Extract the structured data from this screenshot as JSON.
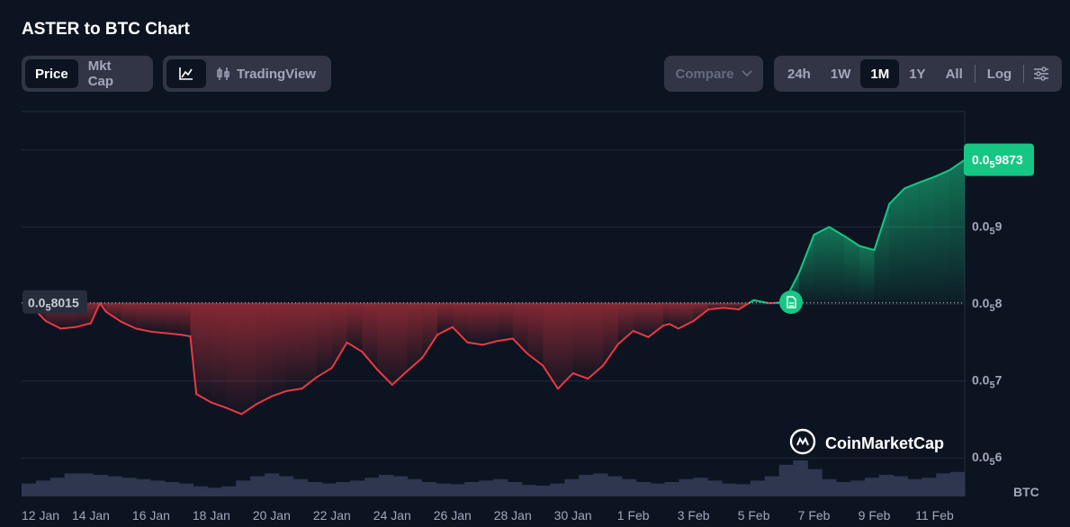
{
  "title": "ASTER to BTC Chart",
  "toggles": {
    "price": "Price",
    "mkt_cap": "Mkt Cap",
    "trading_view": "TradingView",
    "compare": "Compare"
  },
  "ranges": [
    "24h",
    "1W",
    "1M",
    "1Y",
    "All"
  ],
  "active_range": "1M",
  "log_label": "Log",
  "brand": "CoinMarketCap",
  "colors": {
    "up": "#16c784",
    "down": "#ea3943",
    "bg": "#0d1421",
    "panel": "#323546",
    "volume": "#2e3650"
  },
  "chart_data": {
    "type": "area",
    "x_ticks": [
      "12 Jan",
      "14 Jan",
      "16 Jan",
      "18 Jan",
      "20 Jan",
      "22 Jan",
      "24 Jan",
      "26 Jan",
      "28 Jan",
      "30 Jan",
      "1 Feb",
      "3 Feb",
      "5 Feb",
      "7 Feb",
      "9 Feb",
      "11 Feb"
    ],
    "y_ticks": [
      {
        "value": 9e-06,
        "prefix": "0.0",
        "sub": "5",
        "suffix": "9"
      },
      {
        "value": 8e-06,
        "prefix": "0.0",
        "sub": "5",
        "suffix": "8"
      },
      {
        "value": 7e-06,
        "prefix": "0.0",
        "sub": "5",
        "suffix": "7"
      },
      {
        "value": 6e-06,
        "prefix": "0.0",
        "sub": "5",
        "suffix": "6"
      }
    ],
    "ylim": [
      5.5e-06,
      1.05e-05
    ],
    "unit": "BTC",
    "reference": {
      "value": 8.015e-06,
      "prefix": "0.0",
      "sub": "5",
      "suffix": "8015"
    },
    "current": {
      "value": 9.873e-06,
      "prefix": "0.0",
      "sub": "5",
      "suffix": "9873"
    },
    "series": [
      {
        "x_day": [
          0,
          0.5,
          1.0,
          1.5,
          2.0,
          2.3,
          2.5,
          3.0,
          3.5,
          4.0,
          4.5,
          5.0,
          5.3,
          5.5,
          6.0,
          6.5,
          7.0,
          7.5,
          8.0,
          8.5,
          9.0,
          9.5,
          10.0,
          10.5,
          11.0,
          11.5,
          12.0,
          12.5,
          13.0,
          13.5,
          14.0,
          14.5,
          15.0,
          15.5,
          16.0,
          16.5,
          17.0,
          17.5,
          18.0,
          18.5,
          19.0,
          19.5,
          20.0,
          20.5,
          21.0,
          21.2,
          21.5,
          22.0,
          22.5,
          23.0,
          23.5,
          24.0,
          24.5,
          25.0,
          25.5,
          26.0,
          26.5,
          27.0,
          27.5,
          28.0,
          28.5,
          29.0,
          29.5,
          30.0,
          30.5,
          31.0
        ],
        "values": [
          7.98e-06,
          7.78e-06,
          7.68e-06,
          7.7e-06,
          7.75e-06,
          8.01e-06,
          7.9e-06,
          7.77e-06,
          7.68e-06,
          7.64e-06,
          7.62e-06,
          7.6e-06,
          7.58e-06,
          6.83e-06,
          6.72e-06,
          6.65e-06,
          6.57e-06,
          6.7e-06,
          6.8e-06,
          6.87e-06,
          6.9e-06,
          7.05e-06,
          7.17e-06,
          7.5e-06,
          7.38e-06,
          7.15e-06,
          6.95e-06,
          7.13e-06,
          7.3e-06,
          7.6e-06,
          7.7e-06,
          7.5e-06,
          7.47e-06,
          7.52e-06,
          7.55e-06,
          7.35e-06,
          7.2e-06,
          6.9e-06,
          7.1e-06,
          7.03e-06,
          7.2e-06,
          7.48e-06,
          7.65e-06,
          7.57e-06,
          7.72e-06,
          7.74e-06,
          7.68e-06,
          7.78e-06,
          7.93e-06,
          7.95e-06,
          7.93e-06,
          8.05e-06,
          8.01e-06,
          8.02e-06,
          8.4e-06,
          8.9e-06,
          9e-06,
          8.884e-06,
          8.755e-06,
          8.7e-06,
          9.3e-06,
          9.5e-06,
          9.58e-06,
          9.652e-06,
          9.739e-06,
          9.873e-06
        ]
      }
    ],
    "volume": [
      18,
      22,
      26,
      32,
      32,
      30,
      28,
      26,
      24,
      22,
      20,
      18,
      14,
      12,
      14,
      22,
      28,
      32,
      28,
      24,
      20,
      18,
      20,
      22,
      26,
      30,
      28,
      24,
      20,
      18,
      17,
      20,
      22,
      24,
      20,
      16,
      15,
      18,
      24,
      30,
      32,
      28,
      24,
      20,
      18,
      20,
      24,
      26,
      22,
      18,
      17,
      22,
      28,
      44,
      50,
      38,
      24,
      20,
      22,
      26,
      30,
      28,
      24,
      26,
      32,
      34
    ]
  }
}
